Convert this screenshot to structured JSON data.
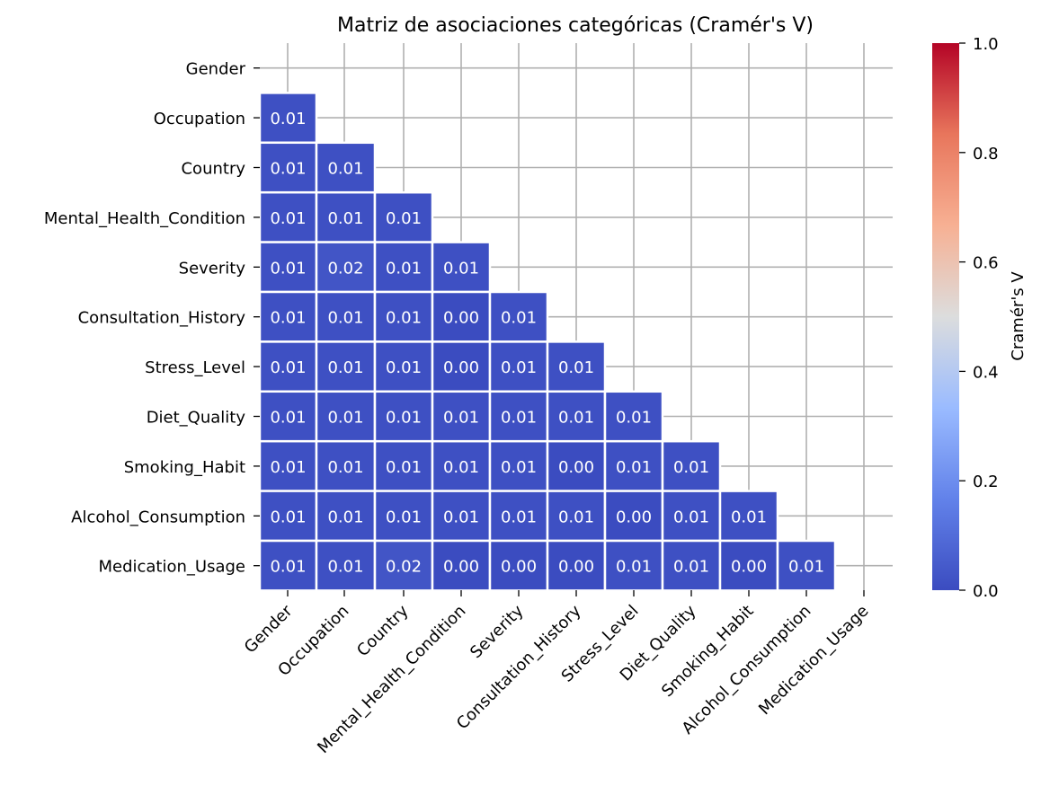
{
  "chart_data": {
    "type": "heatmap",
    "title": "Matriz de asociaciones categóricas (Cramér's V)",
    "variables": [
      "Gender",
      "Occupation",
      "Country",
      "Mental_Health_Condition",
      "Severity",
      "Consultation_History",
      "Stress_Level",
      "Diet_Quality",
      "Smoking_Habit",
      "Alcohol_Consumption",
      "Medication_Usage"
    ],
    "mask": "lower-triangle",
    "values": [
      [],
      [
        "0.01"
      ],
      [
        "0.01",
        "0.01"
      ],
      [
        "0.01",
        "0.01",
        "0.01"
      ],
      [
        "0.01",
        "0.02",
        "0.01",
        "0.01"
      ],
      [
        "0.01",
        "0.01",
        "0.01",
        "0.00",
        "0.01"
      ],
      [
        "0.01",
        "0.01",
        "0.01",
        "0.00",
        "0.01",
        "0.01"
      ],
      [
        "0.01",
        "0.01",
        "0.01",
        "0.01",
        "0.01",
        "0.01",
        "0.01"
      ],
      [
        "0.01",
        "0.01",
        "0.01",
        "0.01",
        "0.01",
        "0.00",
        "0.01",
        "0.01"
      ],
      [
        "0.01",
        "0.01",
        "0.01",
        "0.01",
        "0.01",
        "0.01",
        "0.00",
        "0.01",
        "0.01"
      ],
      [
        "0.01",
        "0.01",
        "0.02",
        "0.00",
        "0.00",
        "0.00",
        "0.01",
        "0.01",
        "0.00",
        "0.01"
      ]
    ],
    "colorbar": {
      "label": "Cramér's V",
      "range": [
        0,
        1
      ],
      "ticks": [
        "0.0",
        "0.2",
        "0.4",
        "0.6",
        "0.8",
        "1.0"
      ],
      "colormap": "coolwarm",
      "colors": [
        "#3b4cc0",
        "#7396f5",
        "#b0cbfc",
        "#dcdddd",
        "#f5b396",
        "#e56f56",
        "#b40426"
      ]
    },
    "grid": true,
    "cell_text_color": "#ffffff"
  }
}
